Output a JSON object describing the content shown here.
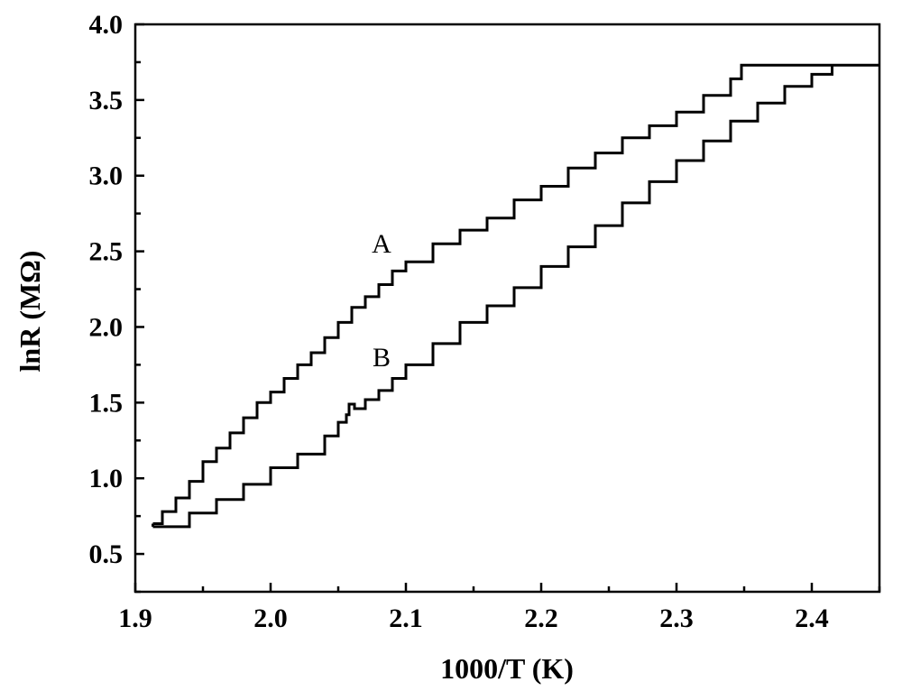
{
  "chart_data": {
    "type": "line",
    "title": "",
    "xlabel": "1000/T (K)",
    "ylabel": "lnR (MΩ)",
    "xlim": [
      1.9,
      2.45
    ],
    "ylim": [
      0.25,
      4.0
    ],
    "xticks": [
      "1.9",
      "2.0",
      "2.1",
      "2.2",
      "2.3",
      "2.4"
    ],
    "yticks": [
      "0.5",
      "1.0",
      "1.5",
      "2.0",
      "2.5",
      "3.0",
      "3.5",
      "4.0"
    ],
    "grid": false,
    "legend": "none",
    "series": [
      {
        "name": "A",
        "x": [
          1.913,
          1.92,
          1.93,
          1.94,
          1.95,
          1.96,
          1.97,
          1.98,
          1.99,
          2.0,
          2.01,
          2.02,
          2.03,
          2.04,
          2.05,
          2.06,
          2.07,
          2.08,
          2.09,
          2.1,
          2.12,
          2.14,
          2.16,
          2.18,
          2.2,
          2.22,
          2.24,
          2.26,
          2.28,
          2.3,
          2.32,
          2.34,
          2.348,
          2.45
        ],
        "values": [
          0.7,
          0.78,
          0.87,
          0.98,
          1.11,
          1.2,
          1.3,
          1.4,
          1.5,
          1.57,
          1.66,
          1.75,
          1.83,
          1.93,
          2.03,
          2.13,
          2.2,
          2.28,
          2.37,
          2.43,
          2.55,
          2.64,
          2.72,
          2.84,
          2.93,
          3.05,
          3.15,
          3.25,
          3.33,
          3.42,
          3.53,
          3.64,
          3.73,
          3.73
        ]
      },
      {
        "name": "B",
        "x": [
          1.913,
          1.92,
          1.94,
          1.96,
          1.98,
          2.0,
          2.02,
          2.04,
          2.05,
          2.056,
          2.058,
          2.062,
          2.07,
          2.08,
          2.09,
          2.1,
          2.12,
          2.14,
          2.16,
          2.18,
          2.2,
          2.22,
          2.24,
          2.26,
          2.28,
          2.3,
          2.32,
          2.34,
          2.36,
          2.38,
          2.4,
          2.415
        ],
        "values": [
          0.68,
          0.68,
          0.77,
          0.86,
          0.96,
          1.07,
          1.16,
          1.28,
          1.37,
          1.42,
          1.49,
          1.46,
          1.52,
          1.58,
          1.66,
          1.75,
          1.89,
          2.03,
          2.14,
          2.26,
          2.4,
          2.53,
          2.67,
          2.82,
          2.96,
          3.1,
          3.23,
          3.36,
          3.48,
          3.59,
          3.67,
          3.73
        ]
      }
    ],
    "annotations": [
      {
        "text": "A",
        "x": 2.082,
        "y": 2.55
      },
      {
        "text": "B",
        "x": 2.082,
        "y": 1.8
      }
    ]
  }
}
